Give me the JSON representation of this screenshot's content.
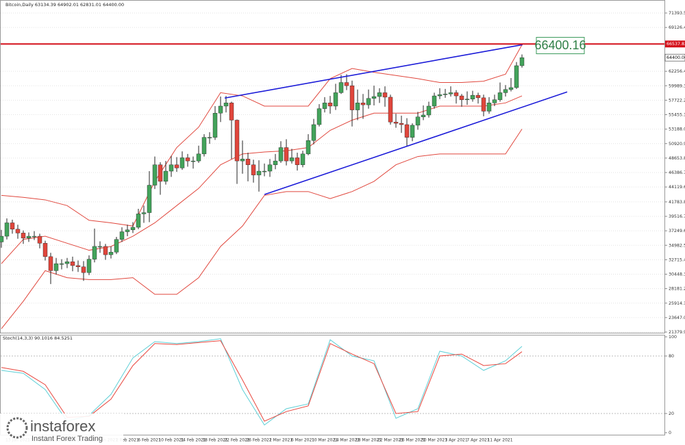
{
  "chart_data": [
    {
      "type": "candlestick",
      "title": "Bitcoin,Daily  63134.39 64902.01 62831.01 64400.00",
      "categories": [
        null,
        null,
        null,
        null,
        "13 Jan 2021",
        null,
        null,
        null,
        "17 Jan 2021",
        null,
        null,
        null,
        "21 Jan 2021",
        null,
        null,
        null,
        "25 Jan 2021",
        null,
        null,
        null,
        "29 Jan 2021",
        null,
        null,
        null,
        "2 Feb 2021",
        null,
        null,
        null,
        "6 Feb 2021",
        null,
        null,
        null,
        "10 Feb 2021",
        null,
        null,
        null,
        "14 Feb 2021",
        null,
        null,
        null,
        "18 Feb 2021",
        null,
        null,
        null,
        "22 Feb 2021",
        null,
        null,
        null,
        "26 Feb 2021",
        null,
        null,
        null,
        "2 Mar 2021",
        null,
        null,
        null,
        "6 Mar 2021",
        null,
        null,
        null,
        "10 Mar 2021",
        null,
        null,
        null,
        "14 Mar 2021",
        null,
        null,
        null,
        "18 Mar 2021",
        null,
        null,
        null,
        "22 Mar 2021",
        null,
        null,
        null,
        "26 Mar 2021",
        null,
        null,
        null,
        "30 Mar 2021",
        null,
        null,
        null,
        "3 Apr 2021",
        null,
        null,
        null,
        "7 Apr 2021",
        null,
        null,
        null,
        "11 Apr 2021",
        null,
        null,
        null
      ],
      "open": [
        35500,
        36400,
        38500,
        37500,
        36900,
        36100,
        36400,
        36400,
        35300,
        33200,
        31000,
        32100,
        32100,
        32400,
        31800,
        31600,
        30700,
        32800,
        34800,
        34800,
        33500,
        33900,
        35900,
        37100,
        37400,
        37800,
        39900,
        40100,
        44400,
        47600,
        45000,
        46600,
        47600,
        47100,
        48700,
        48200,
        48200,
        49300,
        51900,
        51900,
        55700,
        56800,
        57300,
        54600,
        48200,
        48500,
        47600,
        46000,
        46600,
        46600,
        47600,
        48200,
        50300,
        48200,
        48700,
        47600,
        49300,
        51400,
        53900,
        56400,
        57300,
        56800,
        58900,
        60500,
        60000,
        56200,
        57300,
        57000,
        58000,
        58300,
        58900,
        58200,
        54300,
        54100,
        53900,
        51900,
        53800,
        55100,
        55400,
        56800,
        58400,
        58600,
        58700,
        58900,
        58400,
        57800,
        57900,
        58500,
        58100,
        56000,
        57300,
        57800,
        58900,
        59400,
        59700,
        63134.39
      ],
      "high": [
        37400,
        39200,
        39000,
        38200,
        37300,
        37000,
        37200,
        36800,
        35700,
        33800,
        33000,
        32800,
        33000,
        33200,
        32600,
        32500,
        33400,
        37600,
        35600,
        35200,
        34800,
        36300,
        37800,
        38200,
        38600,
        40700,
        41200,
        46600,
        48900,
        48000,
        48200,
        49000,
        48800,
        49700,
        49300,
        48900,
        50600,
        52400,
        52700,
        56800,
        58300,
        58400,
        57500,
        54700,
        51400,
        49500,
        48400,
        48300,
        47800,
        48500,
        49300,
        51300,
        51600,
        50100,
        49500,
        49800,
        52400,
        54800,
        57100,
        58200,
        58400,
        60300,
        61700,
        61800,
        60800,
        59400,
        58700,
        59400,
        60000,
        59600,
        59900,
        58600,
        55600,
        55300,
        54900,
        54100,
        55900,
        56900,
        57500,
        58900,
        59600,
        59500,
        59900,
        59300,
        58700,
        59100,
        59200,
        58900,
        58600,
        58200,
        58600,
        60500,
        60100,
        61200,
        63700,
        64902.01
      ],
      "low": [
        34600,
        35900,
        36800,
        36000,
        35200,
        35500,
        35800,
        34500,
        32600,
        28900,
        30400,
        31200,
        31400,
        30900,
        30800,
        29400,
        30300,
        32300,
        33800,
        32700,
        32900,
        33600,
        35500,
        36400,
        36900,
        37500,
        38500,
        38600,
        43800,
        42900,
        44500,
        45700,
        46500,
        46800,
        47300,
        47000,
        47900,
        48900,
        50900,
        51500,
        54300,
        55800,
        48500,
        44600,
        46200,
        45000,
        44800,
        43400,
        45800,
        45700,
        46900,
        47900,
        47500,
        47800,
        46700,
        47200,
        49100,
        50800,
        53600,
        55800,
        55600,
        56200,
        58700,
        59300,
        53600,
        54600,
        54800,
        56400,
        56900,
        57300,
        56700,
        53900,
        53400,
        52600,
        50500,
        51300,
        53100,
        54600,
        55000,
        56400,
        57900,
        58100,
        58300,
        57200,
        56700,
        57000,
        57500,
        57200,
        55200,
        55600,
        56800,
        57500,
        58300,
        59100,
        59500,
        62831.01
      ],
      "close": [
        36400,
        38500,
        37500,
        36900,
        36100,
        36400,
        36400,
        35300,
        33200,
        31000,
        32100,
        32100,
        32400,
        31800,
        31600,
        30700,
        32800,
        34800,
        34800,
        33500,
        33900,
        35900,
        37100,
        37400,
        37800,
        39900,
        40100,
        44400,
        47600,
        45000,
        46600,
        47600,
        47100,
        48700,
        48200,
        48200,
        49300,
        51900,
        51900,
        55700,
        56800,
        57300,
        54600,
        48200,
        48500,
        47600,
        46000,
        46600,
        46600,
        47600,
        48200,
        50300,
        48200,
        48700,
        47600,
        49300,
        51400,
        53900,
        56400,
        57300,
        56800,
        58900,
        60500,
        60000,
        56200,
        57300,
        57000,
        58000,
        58300,
        58900,
        58200,
        54300,
        54100,
        53900,
        51900,
        53800,
        55100,
        55400,
        56800,
        58400,
        58600,
        58700,
        58900,
        58400,
        57800,
        57900,
        58500,
        58100,
        56000,
        57300,
        57800,
        58900,
        59400,
        59700,
        63134.39,
        64400
      ],
      "colors": {
        "up": "#43a35b",
        "down": "#e0463c",
        "wick": "#222222"
      },
      "ylim": [
        21379.9,
        71393.5
      ],
      "yticks": [
        {
          "value": 21379.9,
          "label": "21379.90"
        },
        {
          "value": 23647,
          "label": "23647.00"
        },
        {
          "value": 25914.1,
          "label": "25914.10"
        },
        {
          "value": 28181.2,
          "label": "28181.20"
        },
        {
          "value": 30448.3,
          "label": "30448.30"
        },
        {
          "value": 32715.4,
          "label": "32715.40"
        },
        {
          "value": 34982.5,
          "label": "34982.50"
        },
        {
          "value": 37249.6,
          "label": "37249.60"
        },
        {
          "value": 39516.7,
          "label": "39516.70"
        },
        {
          "value": 41783.8,
          "label": "41783.80"
        },
        {
          "value": 44119.6,
          "label": "44119.60"
        },
        {
          "value": 46386.7,
          "label": "46386.70"
        },
        {
          "value": 48653.8,
          "label": "48653.80"
        },
        {
          "value": 50920.9,
          "label": "50920.90"
        },
        {
          "value": 53188,
          "label": "53188.00"
        },
        {
          "value": 55455.1,
          "label": "55455.10"
        },
        {
          "value": 57722.2,
          "label": "57722.20"
        },
        {
          "value": 59989.3,
          "label": "59989.30"
        },
        {
          "value": 62256.4,
          "label": "62256.40"
        },
        {
          "value": 69126.4,
          "label": "69126.40"
        },
        {
          "value": 71393.5,
          "label": "71393.50"
        }
      ],
      "grid": true,
      "overlays": [
        {
          "color": "#e0463c",
          "x": [
            0,
            4,
            8,
            12,
            16,
            20,
            24,
            28,
            32,
            36,
            40,
            44,
            48,
            52,
            56,
            60,
            64,
            68,
            72,
            76,
            80,
            84,
            88,
            92,
            95
          ],
          "values": [
            42800,
            42500,
            42100,
            41200,
            38900,
            38500,
            38000,
            45000,
            50300,
            53500,
            58900,
            58400,
            56800,
            56800,
            56800,
            61100,
            62700,
            62100,
            61600,
            61100,
            60500,
            60500,
            60700,
            61800,
            66400
          ]
        },
        {
          "color": "#e0463c",
          "x": [
            0,
            4,
            8,
            12,
            16,
            20,
            24,
            28,
            32,
            36,
            40,
            44,
            48,
            52,
            56,
            60,
            64,
            68,
            72,
            76,
            80,
            84,
            88,
            92,
            95
          ],
          "values": [
            32100,
            35900,
            36400,
            35300,
            34200,
            34800,
            36400,
            38500,
            41200,
            43900,
            47600,
            49300,
            49600,
            49800,
            50300,
            53000,
            54600,
            55700,
            55700,
            55700,
            56800,
            56800,
            56800,
            57300,
            58400
          ]
        },
        {
          "color": "#e0463c",
          "x": [
            0,
            4,
            8,
            12,
            16,
            20,
            24,
            28,
            32,
            36,
            40,
            44,
            48,
            52,
            56,
            60,
            64,
            68,
            72,
            76,
            80,
            84,
            88,
            92,
            95
          ],
          "values": [
            21900,
            26200,
            31000,
            29900,
            29600,
            29600,
            29900,
            27300,
            27300,
            29900,
            34800,
            38000,
            42800,
            43400,
            43400,
            42300,
            43400,
            45000,
            47600,
            48900,
            49300,
            49300,
            49300,
            49300,
            53200
          ]
        }
      ],
      "trendlines": [
        {
          "color": "#1a1ad8",
          "x": [
            40.75,
            95.1
          ],
          "values": [
            58056,
            66420
          ]
        },
        {
          "color": "#1a1ad8",
          "x": [
            48,
            103.25
          ],
          "values": [
            42935,
            59021
          ]
        }
      ],
      "hline": {
        "value": 66537.83,
        "label": "66537.83",
        "color": "#d4101a"
      },
      "price_tag": {
        "value": 64400,
        "label": "64400.00"
      },
      "annotation": 66400.16
    },
    {
      "type": "line",
      "title": "Stoch(14,3,3) 90.1016 84.5251",
      "x": [
        0,
        4,
        8,
        12,
        16,
        20,
        24,
        28,
        32,
        36,
        40,
        44,
        48,
        52,
        56,
        60,
        64,
        68,
        72,
        76,
        80,
        84,
        88,
        92,
        95
      ],
      "series": [
        {
          "color": "#5ccfd6",
          "values": [
            65,
            62,
            45,
            12,
            18,
            40,
            78,
            95,
            93,
            95,
            98,
            45,
            8,
            25,
            30,
            97,
            80,
            75,
            15,
            25,
            85,
            80,
            65,
            75,
            90.1016
          ]
        },
        {
          "color": "#e8453c",
          "values": [
            68,
            64,
            50,
            16,
            17,
            35,
            70,
            93,
            92,
            94,
            96,
            55,
            12,
            22,
            28,
            93,
            82,
            72,
            20,
            22,
            80,
            82,
            70,
            72,
            84.5251
          ]
        }
      ],
      "ylim": [
        0,
        100
      ],
      "yticks": [
        0,
        20,
        80,
        100
      ],
      "levels": [
        20,
        80
      ]
    }
  ],
  "watermark": {
    "brand": "instaforex",
    "tagline": "Instant Forex Trading"
  }
}
